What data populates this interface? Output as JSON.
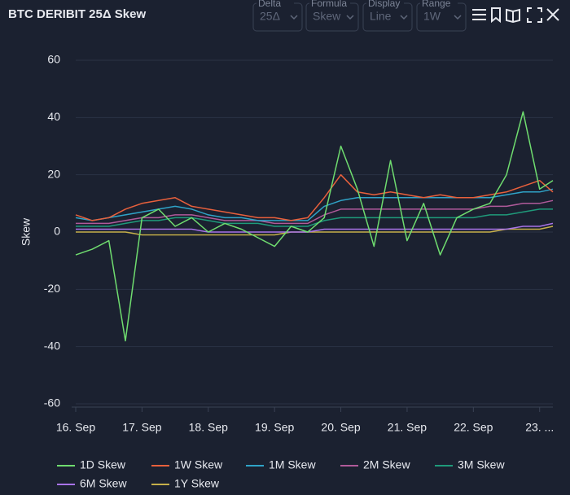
{
  "controls": [
    {
      "label": "Delta",
      "value": "25Δ"
    },
    {
      "label": "Formula",
      "value": "Skew"
    },
    {
      "label": "Display",
      "value": "Line"
    },
    {
      "label": "Range",
      "value": "1W"
    }
  ],
  "chart_data": {
    "type": "line",
    "title": "BTC DERIBIT 25Δ Skew",
    "y_label": "Skew",
    "x": [
      16,
      16.25,
      16.5,
      16.75,
      17,
      17.25,
      17.5,
      17.75,
      18,
      18.25,
      18.5,
      18.75,
      19,
      19.25,
      19.5,
      19.75,
      20,
      20.25,
      20.5,
      20.75,
      21,
      21.25,
      21.5,
      21.75,
      22,
      22.25,
      22.5,
      22.75,
      23,
      23.2
    ],
    "xlim": [
      16,
      23.2
    ],
    "xticks": [
      {
        "value": 16,
        "label": "16. Sep"
      },
      {
        "value": 17,
        "label": "17. Sep"
      },
      {
        "value": 18,
        "label": "18. Sep"
      },
      {
        "value": 19,
        "label": "19. Sep"
      },
      {
        "value": 20,
        "label": "20. Sep"
      },
      {
        "value": 21,
        "label": "21. Sep"
      },
      {
        "value": 22,
        "label": "22. Sep"
      },
      {
        "value": 23,
        "label": "23. ..."
      }
    ],
    "ylim": [
      -60,
      60
    ],
    "yticks": [
      -60,
      -40,
      -20,
      0,
      20,
      40,
      60
    ],
    "grid": true,
    "series": [
      {
        "name": "1D Skew",
        "color": "#6fdc6f",
        "values": [
          -8,
          -6,
          -3,
          -38,
          5,
          8,
          2,
          5,
          0,
          3,
          1,
          -2,
          -5,
          2,
          0,
          5,
          30,
          15,
          -5,
          25,
          -3,
          10,
          -8,
          5,
          8,
          10,
          20,
          42,
          15,
          18
        ]
      },
      {
        "name": "1W Skew",
        "color": "#e8603c",
        "values": [
          6,
          4,
          5,
          8,
          10,
          11,
          12,
          9,
          8,
          7,
          6,
          5,
          5,
          4,
          5,
          12,
          20,
          14,
          13,
          14,
          13,
          12,
          13,
          12,
          12,
          13,
          14,
          16,
          18,
          14
        ]
      },
      {
        "name": "1M Skew",
        "color": "#2fa3c7",
        "values": [
          5,
          4,
          5,
          6,
          7,
          8,
          9,
          8,
          6,
          5,
          5,
          4,
          4,
          4,
          4,
          9,
          11,
          12,
          12,
          12,
          12,
          12,
          12,
          12,
          12,
          12,
          13,
          14,
          14,
          15
        ]
      },
      {
        "name": "2M Skew",
        "color": "#b05a9a",
        "values": [
          3,
          3,
          3,
          4,
          5,
          5,
          6,
          6,
          5,
          4,
          4,
          4,
          3,
          3,
          3,
          6,
          8,
          8,
          8,
          8,
          8,
          8,
          8,
          8,
          8,
          9,
          9,
          10,
          10,
          11
        ]
      },
      {
        "name": "3M Skew",
        "color": "#1f9a7a",
        "values": [
          2,
          2,
          2,
          3,
          4,
          4,
          5,
          5,
          4,
          3,
          3,
          3,
          2,
          2,
          2,
          4,
          5,
          5,
          5,
          5,
          5,
          5,
          5,
          5,
          5,
          6,
          6,
          7,
          8,
          8
        ]
      },
      {
        "name": "6M Skew",
        "color": "#a873e8",
        "values": [
          1,
          1,
          1,
          1,
          1,
          1,
          1,
          1,
          0,
          0,
          0,
          0,
          0,
          0,
          0,
          1,
          1,
          1,
          1,
          1,
          1,
          1,
          1,
          1,
          1,
          1,
          1,
          2,
          2,
          3
        ]
      },
      {
        "name": "1Y Skew",
        "color": "#c6b04a",
        "values": [
          0,
          0,
          0,
          0,
          -1,
          -1,
          -1,
          -1,
          -1,
          -1,
          -1,
          -1,
          -1,
          0,
          0,
          0,
          0,
          0,
          0,
          0,
          0,
          0,
          0,
          0,
          0,
          0,
          1,
          1,
          1,
          2
        ]
      }
    ]
  }
}
